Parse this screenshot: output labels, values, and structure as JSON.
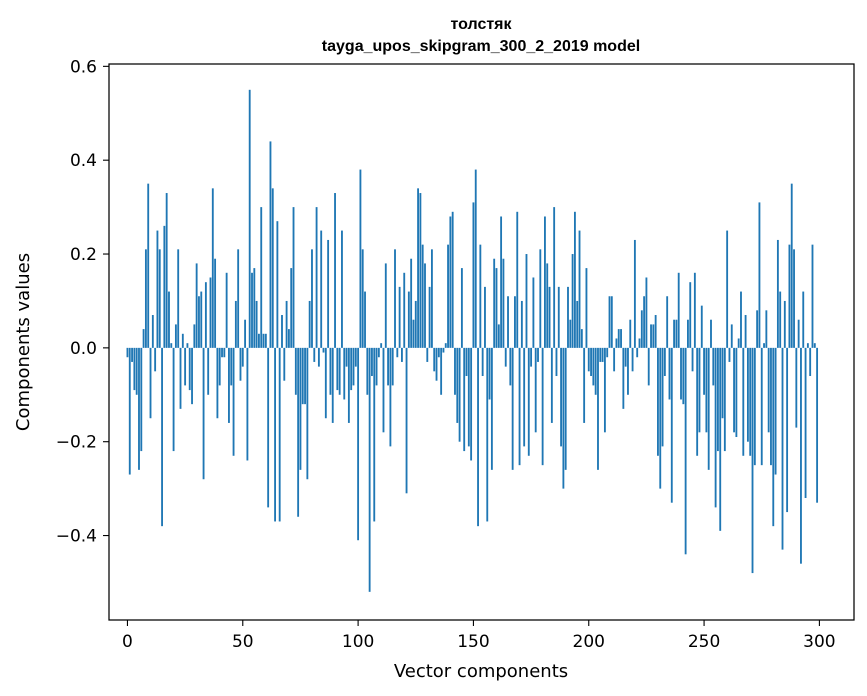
{
  "chart_data": {
    "type": "bar",
    "title": "толстяк",
    "subtitle": "tayga_upos_skipgram_300_2_2019 model",
    "xlabel": "Vector components",
    "ylabel": "Components values",
    "xlim": [
      -8,
      315
    ],
    "ylim": [
      -0.58,
      0.605
    ],
    "xticks": [
      0,
      50,
      100,
      150,
      200,
      250,
      300
    ],
    "xtick_labels": [
      "0",
      "50",
      "100",
      "150",
      "200",
      "250",
      "300"
    ],
    "yticks": [
      -0.4,
      -0.2,
      0.0,
      0.2,
      0.4,
      0.6
    ],
    "ytick_labels": [
      "−0.4",
      "−0.2",
      "0.0",
      "0.2",
      "0.4",
      "0.6"
    ],
    "bar_color": "#1f77b4",
    "grid": false,
    "values": [
      -0.02,
      -0.27,
      -0.03,
      -0.09,
      -0.1,
      -0.26,
      -0.22,
      0.04,
      0.21,
      0.35,
      -0.15,
      0.07,
      -0.05,
      0.25,
      0.21,
      -0.38,
      0.26,
      0.33,
      0.12,
      0.01,
      -0.22,
      0.05,
      0.21,
      -0.13,
      0.03,
      -0.08,
      0.01,
      -0.09,
      -0.12,
      0.05,
      0.18,
      0.11,
      0.12,
      -0.28,
      0.14,
      -0.1,
      0.15,
      0.34,
      0.19,
      -0.15,
      -0.08,
      -0.02,
      -0.02,
      0.16,
      -0.16,
      -0.08,
      -0.23,
      0.1,
      0.21,
      -0.07,
      -0.04,
      0.06,
      -0.24,
      0.55,
      0.16,
      0.17,
      0.1,
      0.03,
      0.3,
      0.03,
      0.03,
      -0.34,
      0.44,
      0.34,
      -0.37,
      0.27,
      -0.37,
      0.07,
      -0.07,
      0.1,
      0.04,
      0.17,
      0.3,
      -0.1,
      -0.36,
      -0.26,
      -0.12,
      -0.12,
      -0.28,
      0.1,
      0.21,
      -0.03,
      0.3,
      -0.04,
      0.25,
      -0.01,
      -0.15,
      0.23,
      -0.1,
      -0.16,
      0.33,
      -0.09,
      -0.1,
      0.25,
      -0.11,
      -0.04,
      -0.16,
      -0.09,
      -0.08,
      -0.04,
      -0.41,
      0.38,
      0.21,
      0.12,
      -0.1,
      -0.52,
      -0.06,
      -0.37,
      -0.08,
      -0.02,
      0.01,
      -0.18,
      0.18,
      -0.08,
      -0.21,
      -0.08,
      0.21,
      -0.02,
      0.13,
      -0.03,
      0.16,
      -0.31,
      0.12,
      0.19,
      0.06,
      0.1,
      0.34,
      0.33,
      0.22,
      0.18,
      -0.03,
      0.13,
      0.21,
      -0.05,
      -0.07,
      -0.02,
      -0.1,
      -0.01,
      0.01,
      0.22,
      0.28,
      0.29,
      -0.1,
      -0.16,
      -0.2,
      0.17,
      -0.22,
      -0.06,
      -0.21,
      -0.24,
      0.31,
      0.38,
      -0.38,
      0.22,
      -0.06,
      0.13,
      -0.37,
      -0.11,
      -0.26,
      0.19,
      0.17,
      0.05,
      0.28,
      0.19,
      -0.04,
      0.11,
      -0.08,
      -0.26,
      0.11,
      0.29,
      -0.25,
      0.1,
      -0.21,
      0.2,
      -0.23,
      -0.04,
      0.15,
      -0.18,
      -0.03,
      0.21,
      -0.25,
      0.28,
      0.18,
      0.13,
      -0.16,
      0.3,
      -0.06,
      0.13,
      -0.21,
      -0.3,
      -0.26,
      0.13,
      0.06,
      0.2,
      0.29,
      0.1,
      0.25,
      0.04,
      -0.16,
      0.17,
      -0.05,
      -0.06,
      -0.08,
      -0.1,
      -0.26,
      -0.03,
      -0.03,
      -0.18,
      -0.02,
      0.11,
      0.11,
      -0.05,
      0.02,
      0.04,
      0.04,
      -0.13,
      -0.04,
      -0.1,
      0.06,
      -0.05,
      0.23,
      -0.02,
      0.02,
      0.08,
      0.11,
      0.15,
      -0.08,
      0.05,
      0.05,
      0.07,
      -0.23,
      -0.3,
      -0.21,
      -0.06,
      0.11,
      -0.11,
      -0.33,
      0.06,
      0.06,
      0.16,
      -0.11,
      -0.12,
      -0.44,
      0.06,
      0.14,
      -0.05,
      0.16,
      -0.23,
      -0.18,
      0.09,
      -0.1,
      -0.18,
      -0.26,
      0.06,
      -0.08,
      -0.34,
      -0.22,
      -0.39,
      -0.15,
      -0.22,
      0.25,
      -0.03,
      0.05,
      -0.18,
      -0.19,
      0.02,
      0.12,
      -0.23,
      0.07,
      -0.2,
      -0.23,
      -0.48,
      -0.25,
      0.08,
      0.31,
      -0.25,
      0.01,
      0.08,
      -0.18,
      -0.25,
      -0.38,
      -0.27,
      0.23,
      0.12,
      -0.43,
      0.1,
      -0.35,
      0.22,
      0.35,
      0.21,
      -0.17,
      0.06,
      -0.46,
      0.12,
      -0.32,
      0.01,
      -0.06,
      0.22,
      0.01,
      -0.33
    ]
  }
}
